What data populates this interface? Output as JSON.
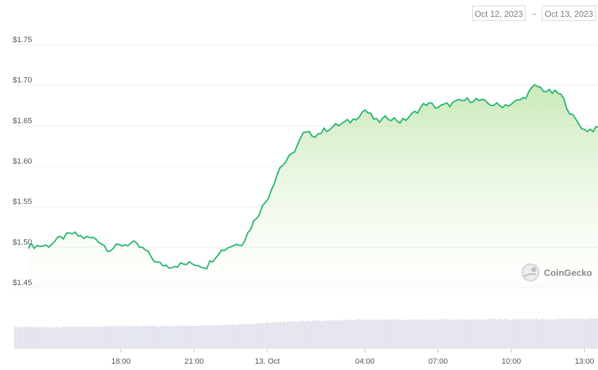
{
  "date_range": {
    "from": "Oct 12, 2023",
    "arrow": "→",
    "to": "Oct 13, 2023"
  },
  "watermark": {
    "text": "CoinGecko",
    "icon": "gecko-icon"
  },
  "colors": {
    "line": "#2bb673",
    "fill_top": "#b7e2a0",
    "bar": "#d9dbe8",
    "grid": "#efefef"
  },
  "chart_data": {
    "type": "area",
    "x_ticks": [
      "18:00",
      "21:00",
      "13. Oct",
      "04:00",
      "07:00",
      "10:00",
      "13:00"
    ],
    "y_ticks": [
      "$1.45",
      "$1.50",
      "$1.55",
      "$1.60",
      "$1.65",
      "$1.70",
      "$1.75"
    ],
    "ylim": [
      1.45,
      1.75
    ],
    "grid": true,
    "x_hours": [
      15.0,
      15.5,
      16.0,
      16.5,
      17.0,
      17.5,
      18.0,
      18.5,
      19.0,
      19.5,
      20.0,
      20.5,
      21.0,
      21.5,
      22.0,
      22.5,
      23.0,
      23.5,
      24.0,
      24.5,
      25.0,
      25.5,
      26.0,
      26.5,
      27.0,
      27.5,
      28.0,
      28.5,
      29.0,
      29.5,
      30.0,
      30.5,
      31.0,
      31.5,
      32.0,
      32.5,
      33.0,
      33.5,
      34.0,
      34.5,
      35.0,
      35.5,
      36.0,
      36.5,
      37.0,
      37.5,
      38.0,
      38.5,
      38.9
    ],
    "price": [
      1.502,
      1.511,
      1.517,
      1.512,
      1.511,
      1.497,
      1.503,
      1.505,
      1.496,
      1.48,
      1.477,
      1.479,
      1.48,
      1.476,
      1.494,
      1.502,
      1.506,
      1.535,
      1.56,
      1.598,
      1.614,
      1.641,
      1.639,
      1.647,
      1.652,
      1.657,
      1.67,
      1.655,
      1.661,
      1.655,
      1.665,
      1.678,
      1.673,
      1.677,
      1.681,
      1.683,
      1.678,
      1.675,
      1.677,
      1.684,
      1.7,
      1.692,
      1.69,
      1.662,
      1.645,
      1.646,
      1.652,
      1.66,
      1.66
    ],
    "volume_level": [
      0.71,
      0.71,
      0.72,
      0.72,
      0.72,
      0.73,
      0.73,
      0.73,
      0.74,
      0.74,
      0.74,
      0.75,
      0.75,
      0.76,
      0.77,
      0.78,
      0.8,
      0.82,
      0.85,
      0.87,
      0.89,
      0.9,
      0.91,
      0.92,
      0.93,
      0.94,
      0.95,
      0.95,
      0.95,
      0.95,
      0.95,
      0.95,
      0.95,
      0.95,
      0.95,
      0.96,
      0.96,
      0.96,
      0.96,
      0.96,
      0.97,
      0.97,
      0.97,
      0.98,
      0.98,
      0.99,
      0.99,
      1.0,
      1.0
    ]
  }
}
